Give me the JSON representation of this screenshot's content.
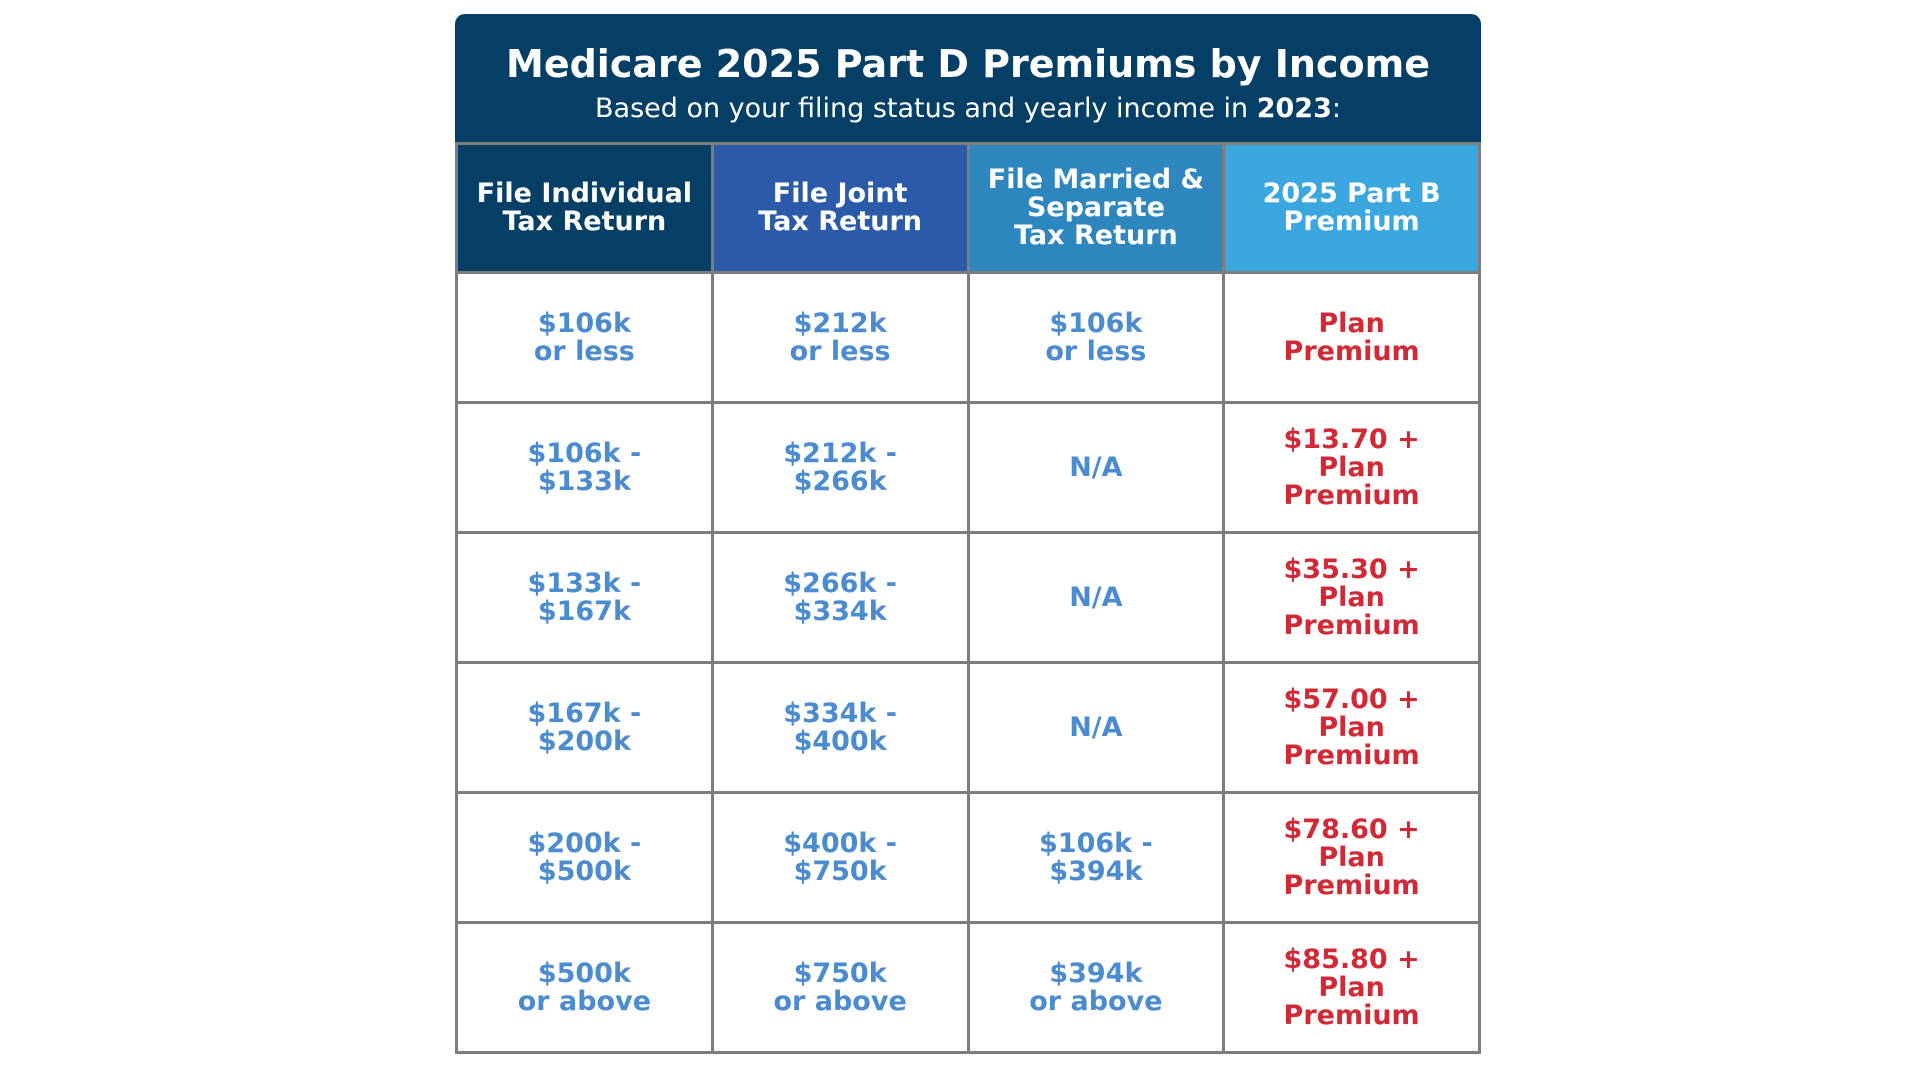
{
  "header": {
    "title": "Medicare 2025 Part D Premiums by Income",
    "subtitle_prefix": "Based on your filing status and yearly income in ",
    "subtitle_year": "2023",
    "subtitle_suffix": ":"
  },
  "colors": {
    "banner": "#053f66",
    "col1_header": "#053f66",
    "col2_header": "#2a5aa8",
    "col3_header": "#2d87be",
    "col4_header": "#3aa8df",
    "income_text": "#4a8ccf",
    "premium_text": "#d12a36"
  },
  "columns": [
    "File Individual\nTax Return",
    "File Joint\nTax Return",
    "File Married &\nSeparate\nTax Return",
    "2025 Part B\nPremium"
  ],
  "rows": [
    [
      "$106k\nor less",
      "$212k\nor less",
      "$106k\nor less",
      "Plan\nPremium"
    ],
    [
      "$106k -\n$133k",
      "$212k -\n$266k",
      "N/A",
      "$13.70 +\nPlan\nPremium"
    ],
    [
      "$133k -\n$167k",
      "$266k -\n$334k",
      "N/A",
      "$35.30 +\nPlan\nPremium"
    ],
    [
      "$167k -\n$200k",
      "$334k -\n$400k",
      "N/A",
      "$57.00 +\nPlan\nPremium"
    ],
    [
      "$200k -\n$500k",
      "$400k -\n$750k",
      "$106k -\n$394k",
      "$78.60 +\nPlan\nPremium"
    ],
    [
      "$500k\nor above",
      "$750k\nor above",
      "$394k\nor above",
      "$85.80 +\nPlan\nPremium"
    ]
  ]
}
